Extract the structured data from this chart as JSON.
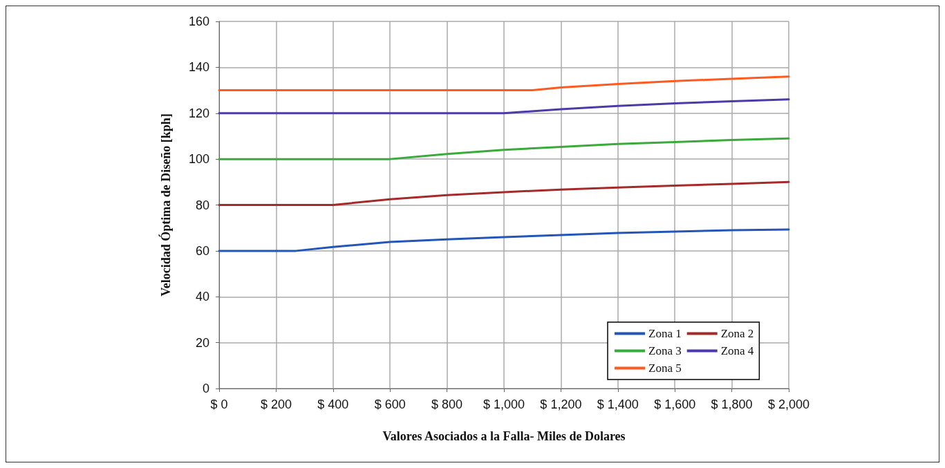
{
  "chart_data": {
    "type": "line",
    "xlabel": "Valores Asociados a la Falla- Miles de Dolares",
    "ylabel": "Velocidad Óptima de Diseño [kph]",
    "xlim": [
      0,
      2000
    ],
    "xticks": [
      {
        "value": 0,
        "label": "$ 0"
      },
      {
        "value": 200,
        "label": "$ 200"
      },
      {
        "value": 400,
        "label": "$ 400"
      },
      {
        "value": 600,
        "label": "$ 600"
      },
      {
        "value": 800,
        "label": "$ 800"
      },
      {
        "value": 1000,
        "label": "$ 1,000"
      },
      {
        "value": 1200,
        "label": "$ 1,200"
      },
      {
        "value": 1400,
        "label": "$ 1,400"
      },
      {
        "value": 1600,
        "label": "$ 1,600"
      },
      {
        "value": 1800,
        "label": "$ 1,800"
      },
      {
        "value": 2000,
        "label": "$ 2,000"
      }
    ],
    "ylim": [
      0,
      160
    ],
    "yticks": [
      0,
      20,
      40,
      60,
      80,
      100,
      120,
      140,
      160
    ],
    "grid": true,
    "legend": "bottom right",
    "marker": "none",
    "line_style": "solid",
    "series": [
      {
        "name": "Zona 1",
        "color": "#2356b8",
        "x": [
          0,
          270,
          400,
          600,
          800,
          1000,
          1200,
          1400,
          1600,
          1800,
          2000
        ],
        "values": [
          60,
          60,
          61.7,
          63.9,
          65,
          66,
          66.9,
          67.8,
          68.4,
          69,
          69.3
        ]
      },
      {
        "name": "Zona 2",
        "color": "#a52a2a",
        "x": [
          0,
          400,
          600,
          800,
          1000,
          1200,
          1400,
          1600,
          1800,
          2000
        ],
        "values": [
          80,
          80,
          82.5,
          84.3,
          85.6,
          86.7,
          87.6,
          88.4,
          89.2,
          90
        ]
      },
      {
        "name": "Zona 3",
        "color": "#3aaa3a",
        "x": [
          0,
          600,
          800,
          1000,
          1200,
          1400,
          1600,
          1800,
          2000
        ],
        "values": [
          100,
          100,
          102.2,
          104,
          105.3,
          106.6,
          107.4,
          108.3,
          109
        ]
      },
      {
        "name": "Zona 4",
        "color": "#4b3aa8",
        "x": [
          0,
          1000,
          1200,
          1400,
          1600,
          1800,
          2000
        ],
        "values": [
          120,
          120,
          121.7,
          123.2,
          124.3,
          125.2,
          126
        ]
      },
      {
        "name": "Zona 5",
        "color": "#ff5a1f",
        "x": [
          0,
          1100,
          1200,
          1400,
          1600,
          1800,
          2000
        ],
        "values": [
          130,
          130,
          131.2,
          132.7,
          134,
          135,
          136
        ]
      }
    ]
  }
}
